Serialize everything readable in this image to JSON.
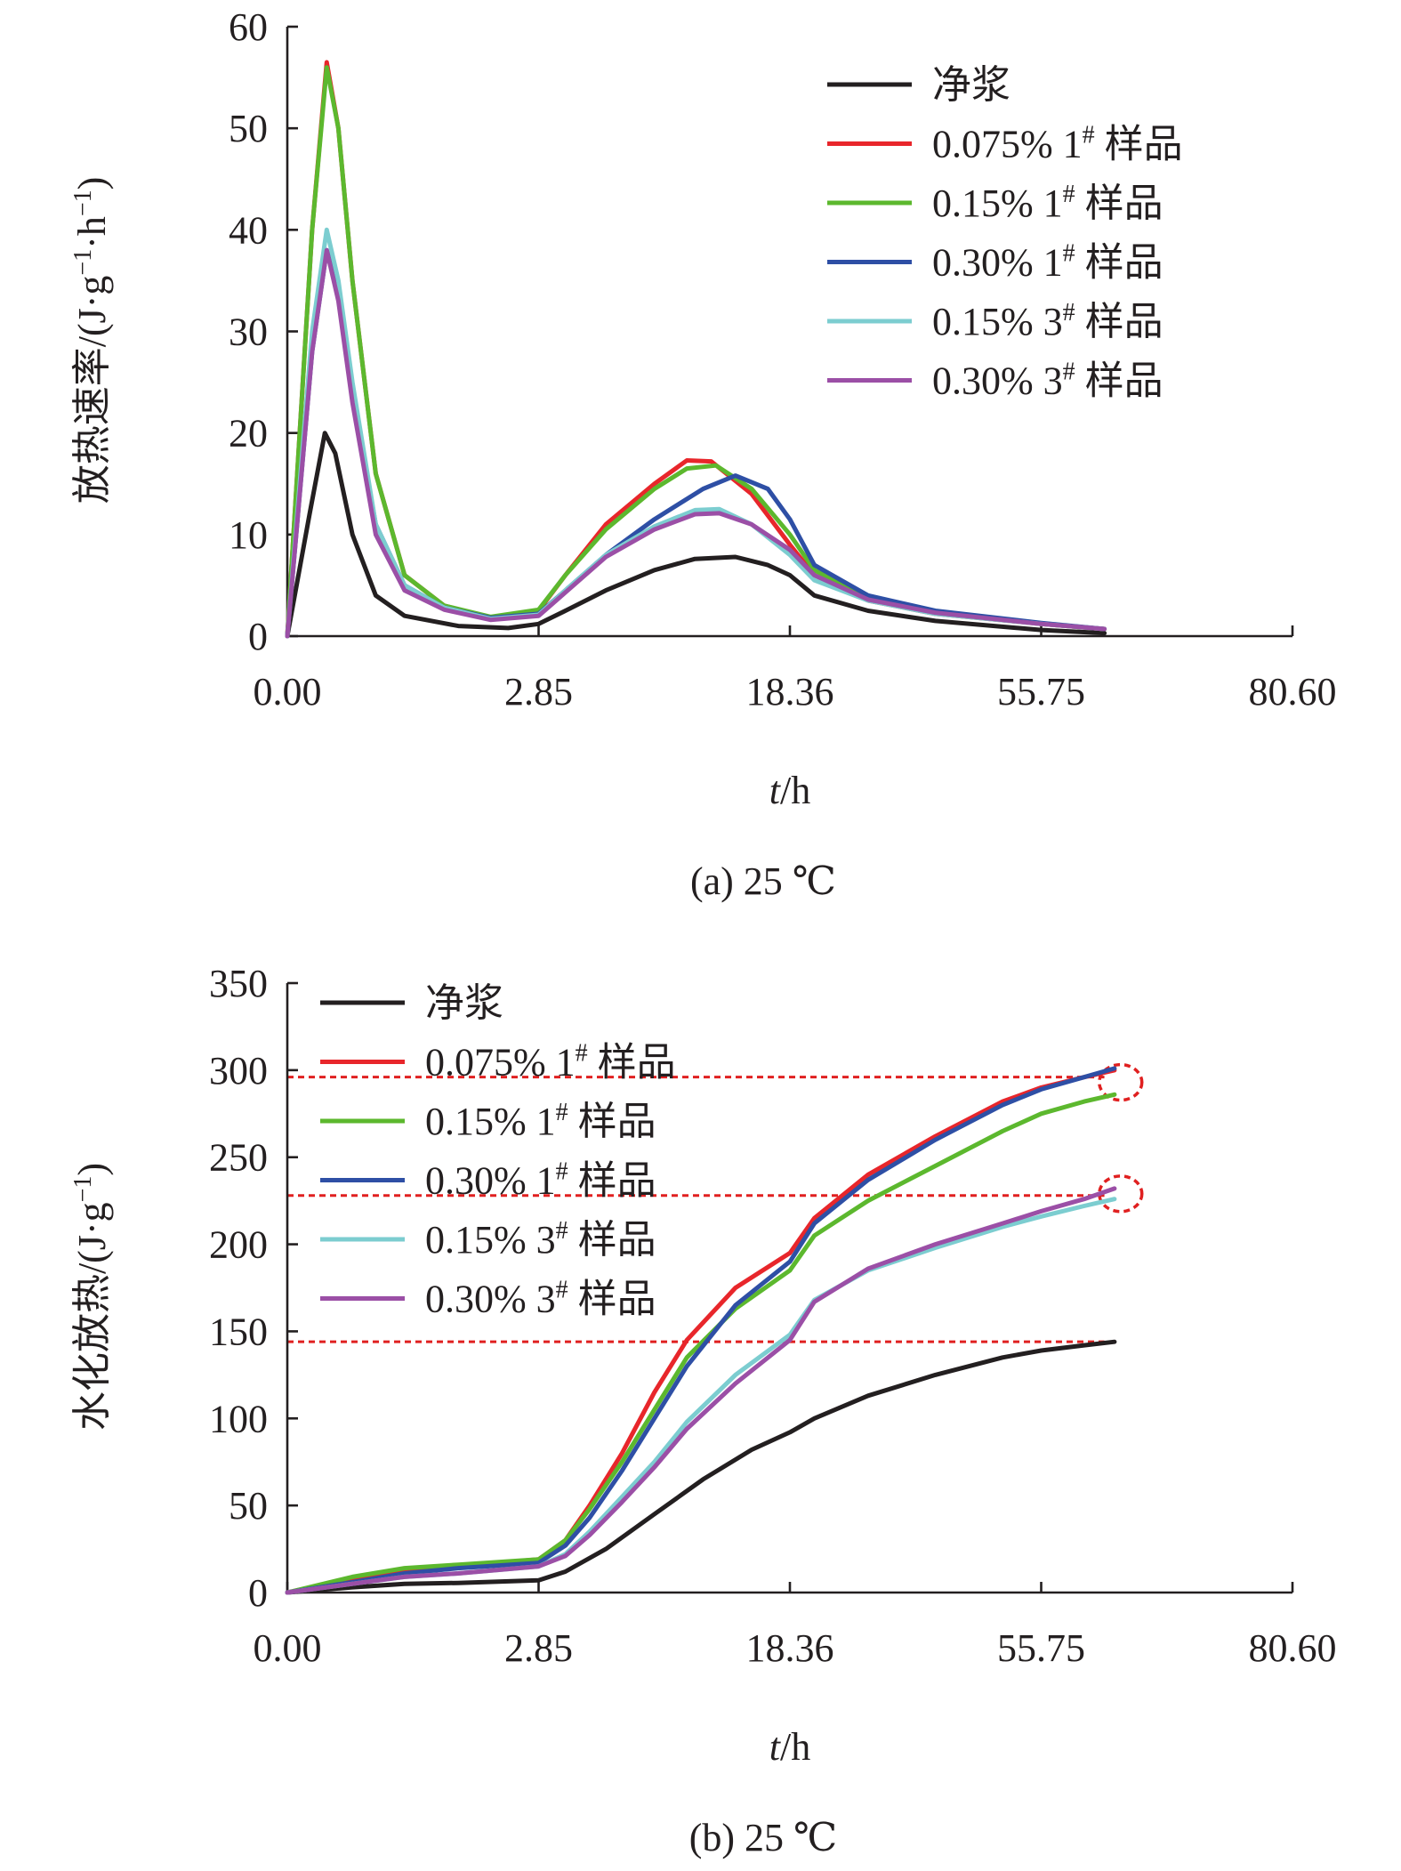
{
  "chart_data": [
    {
      "type": "line",
      "panel": "a",
      "caption": "(a) 25 ℃",
      "xlabel_italic": "t",
      "xlabel_rest": "/h",
      "ylabel": "放热速率/(J·g",
      "ylabel_unit_text": [
        "−1",
        "·h",
        "−1",
        ")"
      ],
      "ylim": [
        0,
        60
      ],
      "yticks": [
        0,
        10,
        20,
        30,
        40,
        50,
        60
      ],
      "xtick_labels": [
        "0.00",
        "2.85",
        "18.36",
        "55.75",
        "80.60"
      ],
      "x_scale": "nonuniform (ticks equally spaced)",
      "legend_position": "top-right",
      "series": [
        {
          "name": "净浆",
          "color": "#231f20",
          "points": [
            [
              0,
              0
            ],
            [
              0.05,
              12
            ],
            [
              0.12,
              20
            ],
            [
              0.18,
              18
            ],
            [
              0.3,
              10
            ],
            [
              0.5,
              4
            ],
            [
              0.8,
              2
            ],
            [
              1.5,
              1
            ],
            [
              2.3,
              0.8
            ],
            [
              2.85,
              1.2
            ],
            [
              4.5,
              2.5
            ],
            [
              7,
              4.5
            ],
            [
              10,
              6.5
            ],
            [
              12.5,
              7.6
            ],
            [
              15,
              7.8
            ],
            [
              17,
              7
            ],
            [
              18.36,
              6
            ],
            [
              22,
              4
            ],
            [
              30,
              2.5
            ],
            [
              40,
              1.5
            ],
            [
              55.75,
              0.6
            ],
            [
              62,
              0.3
            ]
          ]
        },
        {
          "name": "0.075% 1# 样品",
          "color": "#e8262b",
          "points": [
            [
              0,
              0
            ],
            [
              0.06,
              40
            ],
            [
              0.13,
              56.5
            ],
            [
              0.2,
              50
            ],
            [
              0.3,
              35
            ],
            [
              0.5,
              16
            ],
            [
              0.8,
              6
            ],
            [
              1.3,
              3
            ],
            [
              2,
              1.8
            ],
            [
              2.85,
              2.5
            ],
            [
              4.5,
              6
            ],
            [
              7,
              11
            ],
            [
              10,
              15
            ],
            [
              12,
              17.3
            ],
            [
              13.5,
              17.2
            ],
            [
              16,
              14
            ],
            [
              18.36,
              9
            ],
            [
              22,
              6
            ],
            [
              30,
              3.5
            ],
            [
              40,
              2.2
            ],
            [
              55.75,
              1.2
            ],
            [
              62,
              0.7
            ]
          ]
        },
        {
          "name": "0.15% 1# 样品",
          "color": "#5cb82e",
          "points": [
            [
              0,
              0
            ],
            [
              0.06,
              40
            ],
            [
              0.13,
              56
            ],
            [
              0.2,
              50
            ],
            [
              0.3,
              35
            ],
            [
              0.5,
              16
            ],
            [
              0.8,
              6
            ],
            [
              1.3,
              3
            ],
            [
              2,
              1.9
            ],
            [
              2.85,
              2.6
            ],
            [
              4.5,
              6
            ],
            [
              7,
              10.5
            ],
            [
              10,
              14.5
            ],
            [
              12,
              16.5
            ],
            [
              13.8,
              16.8
            ],
            [
              16,
              14.5
            ],
            [
              18.36,
              10
            ],
            [
              22,
              6.5
            ],
            [
              30,
              3.8
            ],
            [
              40,
              2.4
            ],
            [
              55.75,
              1.2
            ],
            [
              62,
              0.7
            ]
          ]
        },
        {
          "name": "0.30% 1# 样品",
          "color": "#2e4fa5",
          "points": [
            [
              0,
              0
            ],
            [
              0.06,
              28
            ],
            [
              0.13,
              38
            ],
            [
              0.2,
              34
            ],
            [
              0.3,
              24
            ],
            [
              0.5,
              11
            ],
            [
              0.8,
              5
            ],
            [
              1.3,
              2.8
            ],
            [
              2,
              1.8
            ],
            [
              2.85,
              2.2
            ],
            [
              4.5,
              4.5
            ],
            [
              7,
              8
            ],
            [
              10,
              11.5
            ],
            [
              13,
              14.5
            ],
            [
              15,
              15.8
            ],
            [
              17,
              14.5
            ],
            [
              18.36,
              11.5
            ],
            [
              22,
              7
            ],
            [
              30,
              4
            ],
            [
              40,
              2.5
            ],
            [
              55.75,
              1.3
            ],
            [
              62,
              0.7
            ]
          ]
        },
        {
          "name": "0.15% 3# 样品",
          "color": "#7ccdd0",
          "points": [
            [
              0,
              0
            ],
            [
              0.06,
              30
            ],
            [
              0.13,
              40
            ],
            [
              0.2,
              35
            ],
            [
              0.3,
              25
            ],
            [
              0.5,
              11
            ],
            [
              0.8,
              5
            ],
            [
              1.3,
              2.8
            ],
            [
              2,
              1.7
            ],
            [
              2.85,
              2.1
            ],
            [
              4.5,
              4.5
            ],
            [
              7,
              8
            ],
            [
              10,
              10.8
            ],
            [
              12.5,
              12.4
            ],
            [
              14,
              12.5
            ],
            [
              16,
              11
            ],
            [
              18.36,
              8
            ],
            [
              22,
              5.5
            ],
            [
              30,
              3.5
            ],
            [
              40,
              2.2
            ],
            [
              55.75,
              1.2
            ],
            [
              62,
              0.7
            ]
          ]
        },
        {
          "name": "0.30% 3# 样品",
          "color": "#9b4fa6",
          "points": [
            [
              0,
              0
            ],
            [
              0.06,
              28
            ],
            [
              0.13,
              38
            ],
            [
              0.2,
              33
            ],
            [
              0.3,
              23
            ],
            [
              0.5,
              10
            ],
            [
              0.8,
              4.5
            ],
            [
              1.3,
              2.6
            ],
            [
              2,
              1.6
            ],
            [
              2.85,
              2.0
            ],
            [
              4.5,
              4.3
            ],
            [
              7,
              7.8
            ],
            [
              10,
              10.5
            ],
            [
              12.5,
              12.0
            ],
            [
              14,
              12.1
            ],
            [
              16,
              11
            ],
            [
              18.36,
              8.5
            ],
            [
              22,
              6
            ],
            [
              30,
              3.6
            ],
            [
              40,
              2.3
            ],
            [
              55.75,
              1.2
            ],
            [
              62,
              0.7
            ]
          ]
        }
      ]
    },
    {
      "type": "line",
      "panel": "b",
      "caption": "(b) 25 ℃",
      "xlabel_italic": "t",
      "xlabel_rest": "/h",
      "ylabel": "水化放热/(J·g",
      "ylabel_unit_text": [
        "−1",
        ")"
      ],
      "ylim": [
        0,
        350
      ],
      "yticks": [
        0,
        50,
        100,
        150,
        200,
        250,
        300,
        350
      ],
      "xtick_labels": [
        "0.00",
        "2.85",
        "18.36",
        "55.75",
        "80.60"
      ],
      "x_scale": "nonuniform (ticks equally spaced)",
      "legend_position": "top-left",
      "reference_lines": [
        296,
        228,
        144
      ],
      "series": [
        {
          "name": "净浆",
          "color": "#231f20",
          "points": [
            [
              0,
              0
            ],
            [
              0.3,
              3
            ],
            [
              0.8,
              5
            ],
            [
              1.5,
              5.5
            ],
            [
              2.85,
              7
            ],
            [
              4.5,
              12
            ],
            [
              7,
              25
            ],
            [
              10,
              45
            ],
            [
              13,
              65
            ],
            [
              16,
              82
            ],
            [
              18.36,
              92
            ],
            [
              22,
              100
            ],
            [
              30,
              113
            ],
            [
              40,
              125
            ],
            [
              50,
              135
            ],
            [
              55.75,
              139
            ],
            [
              60,
              142
            ],
            [
              63,
              144
            ]
          ]
        },
        {
          "name": "0.075% 1# 样品",
          "color": "#e8262b",
          "points": [
            [
              0,
              0
            ],
            [
              0.3,
              8
            ],
            [
              0.8,
              13
            ],
            [
              1.5,
              15
            ],
            [
              2.85,
              19
            ],
            [
              4.5,
              30
            ],
            [
              6,
              50
            ],
            [
              8,
              80
            ],
            [
              10,
              115
            ],
            [
              12,
              145
            ],
            [
              15,
              175
            ],
            [
              18.36,
              195
            ],
            [
              22,
              215
            ],
            [
              30,
              240
            ],
            [
              40,
              262
            ],
            [
              50,
              282
            ],
            [
              55.75,
              290
            ],
            [
              60,
              296
            ],
            [
              63,
              300
            ]
          ]
        },
        {
          "name": "0.15% 1# 样品",
          "color": "#5cb82e",
          "points": [
            [
              0,
              0
            ],
            [
              0.3,
              9
            ],
            [
              0.8,
              14
            ],
            [
              1.5,
              16
            ],
            [
              2.85,
              19
            ],
            [
              4.5,
              30
            ],
            [
              6,
              48
            ],
            [
              8,
              75
            ],
            [
              10,
              105
            ],
            [
              12,
              135
            ],
            [
              15,
              163
            ],
            [
              18.36,
              185
            ],
            [
              22,
              205
            ],
            [
              30,
              225
            ],
            [
              40,
              245
            ],
            [
              50,
              265
            ],
            [
              55.75,
              275
            ],
            [
              60,
              282
            ],
            [
              63,
              286
            ]
          ]
        },
        {
          "name": "0.30% 1# 样品",
          "color": "#2e4fa5",
          "points": [
            [
              0,
              0
            ],
            [
              0.3,
              6
            ],
            [
              0.8,
              11
            ],
            [
              1.5,
              14
            ],
            [
              2.85,
              17
            ],
            [
              4.5,
              27
            ],
            [
              6,
              43
            ],
            [
              8,
              70
            ],
            [
              10,
              100
            ],
            [
              12,
              130
            ],
            [
              15,
              165
            ],
            [
              18.36,
              190
            ],
            [
              22,
              212
            ],
            [
              30,
              237
            ],
            [
              40,
              260
            ],
            [
              50,
              280
            ],
            [
              55.75,
              289
            ],
            [
              60,
              296
            ],
            [
              63,
              301
            ]
          ]
        },
        {
          "name": "0.15% 3# 样品",
          "color": "#7ccdd0",
          "points": [
            [
              0,
              0
            ],
            [
              0.3,
              5
            ],
            [
              0.8,
              9
            ],
            [
              1.5,
              11
            ],
            [
              2.85,
              15
            ],
            [
              4.5,
              22
            ],
            [
              6,
              35
            ],
            [
              8,
              55
            ],
            [
              10,
              75
            ],
            [
              12,
              98
            ],
            [
              15,
              125
            ],
            [
              18.36,
              148
            ],
            [
              22,
              168
            ],
            [
              30,
              185
            ],
            [
              40,
              198
            ],
            [
              50,
              210
            ],
            [
              55.75,
              216
            ],
            [
              60,
              222
            ],
            [
              63,
              226
            ]
          ]
        },
        {
          "name": "0.30% 3# 样品",
          "color": "#9b4fa6",
          "points": [
            [
              0,
              0
            ],
            [
              0.3,
              5
            ],
            [
              0.8,
              9
            ],
            [
              1.5,
              11
            ],
            [
              2.85,
              15
            ],
            [
              4.5,
              21
            ],
            [
              6,
              33
            ],
            [
              8,
              52
            ],
            [
              10,
              72
            ],
            [
              12,
              94
            ],
            [
              15,
              120
            ],
            [
              18.36,
              145
            ],
            [
              22,
              167
            ],
            [
              30,
              186
            ],
            [
              40,
              200
            ],
            [
              50,
              212
            ],
            [
              55.75,
              219
            ],
            [
              60,
              226
            ],
            [
              63,
              232
            ]
          ]
        }
      ]
    }
  ]
}
